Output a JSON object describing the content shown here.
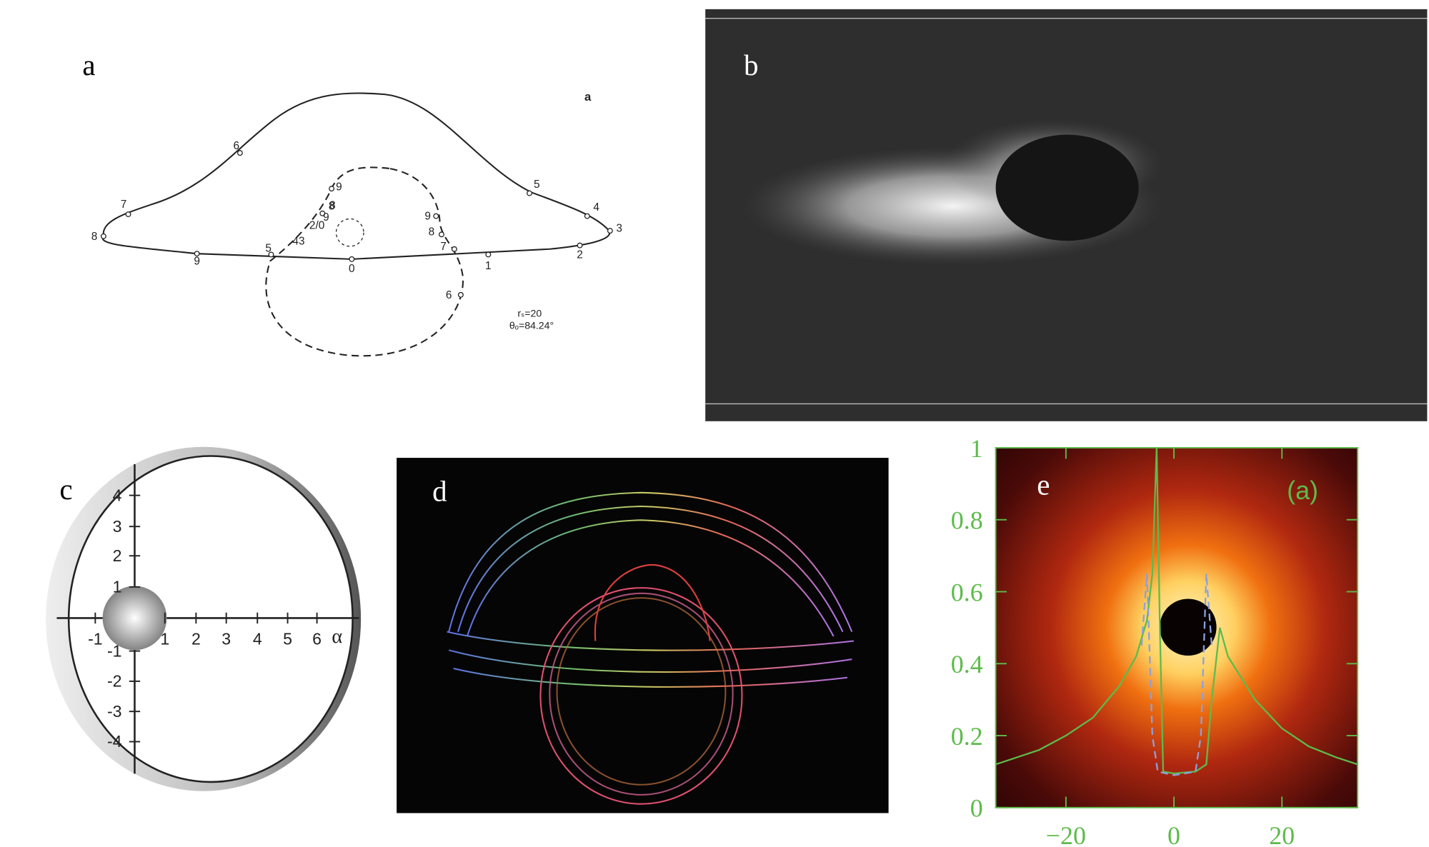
{
  "figure": {
    "panel_labels": [
      "a",
      "b",
      "c",
      "d",
      "e"
    ],
    "panel_a": {
      "corner_label": "a",
      "point_labels": [
        "6",
        "7",
        "8",
        "9",
        "5",
        "0",
        "1",
        "2",
        "3",
        "4",
        "5",
        "9",
        "8",
        "9",
        "8",
        "7",
        "6",
        "43",
        "2/0",
        "9",
        "8"
      ],
      "annotations": [
        "rₛ=20",
        "θₒ=84.24°"
      ]
    },
    "panel_c": {
      "axis_label": "α",
      "x_tick_labels": [
        "-1",
        "1",
        "2",
        "3",
        "4",
        "5",
        "6"
      ],
      "y_tick_labels": [
        "4",
        "3",
        "2",
        "1",
        "-1",
        "-2",
        "-3",
        "-4"
      ]
    }
  },
  "chart_data": {
    "type": "line",
    "inset_label": "(a)",
    "xlim": [
      -33,
      34
    ],
    "ylim": [
      0,
      1
    ],
    "xticks": [
      {
        "value": -20,
        "label": "−20"
      },
      0,
      20
    ],
    "yticks": [
      0,
      0.2,
      0.4,
      0.6,
      0.8,
      1
    ],
    "series": [
      {
        "color": "#5dbb4a",
        "dash": false,
        "x": [
          -33,
          -25,
          -20,
          -15,
          -10,
          -7,
          -5,
          -4,
          -3.2,
          -2.6,
          -2,
          0,
          4,
          6,
          7,
          8.5,
          10,
          15,
          20,
          25,
          30,
          34
        ],
        "values": [
          0.12,
          0.16,
          0.2,
          0.25,
          0.34,
          0.42,
          0.52,
          0.65,
          1.0,
          0.5,
          0.1,
          0.095,
          0.1,
          0.12,
          0.3,
          0.5,
          0.42,
          0.3,
          0.22,
          0.17,
          0.14,
          0.12
        ]
      },
      {
        "color": "#8aa0e0",
        "dash": true,
        "x": [
          -6,
          -5,
          -4,
          -3,
          0,
          4,
          5,
          6,
          7
        ],
        "values": [
          0.45,
          0.65,
          0.2,
          0.1,
          0.09,
          0.1,
          0.2,
          0.65,
          0.45
        ]
      }
    ]
  }
}
